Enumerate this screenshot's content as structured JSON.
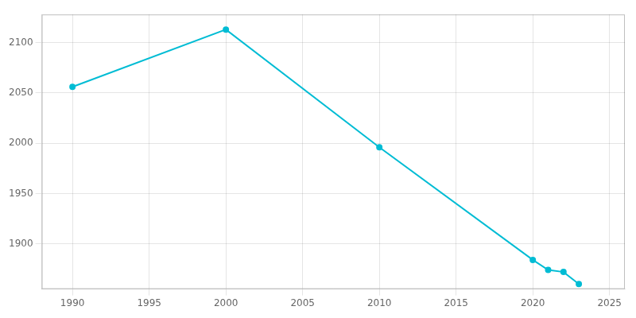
{
  "chart_data": {
    "type": "line",
    "x": [
      1990,
      2000,
      2010,
      2020,
      2021,
      2022,
      2023
    ],
    "values": [
      2056,
      2113,
      1996,
      1884,
      1874,
      1872,
      1860
    ],
    "color": "#00bcd4",
    "marker": "circle",
    "xlim": [
      1988,
      2026
    ],
    "xticks": [
      1990,
      1995,
      2000,
      2005,
      2010,
      2015,
      2020,
      2025
    ],
    "ylim": [
      1855,
      2128
    ],
    "yticks": [
      1900,
      1950,
      2000,
      2050,
      2100
    ],
    "grid": true
  }
}
